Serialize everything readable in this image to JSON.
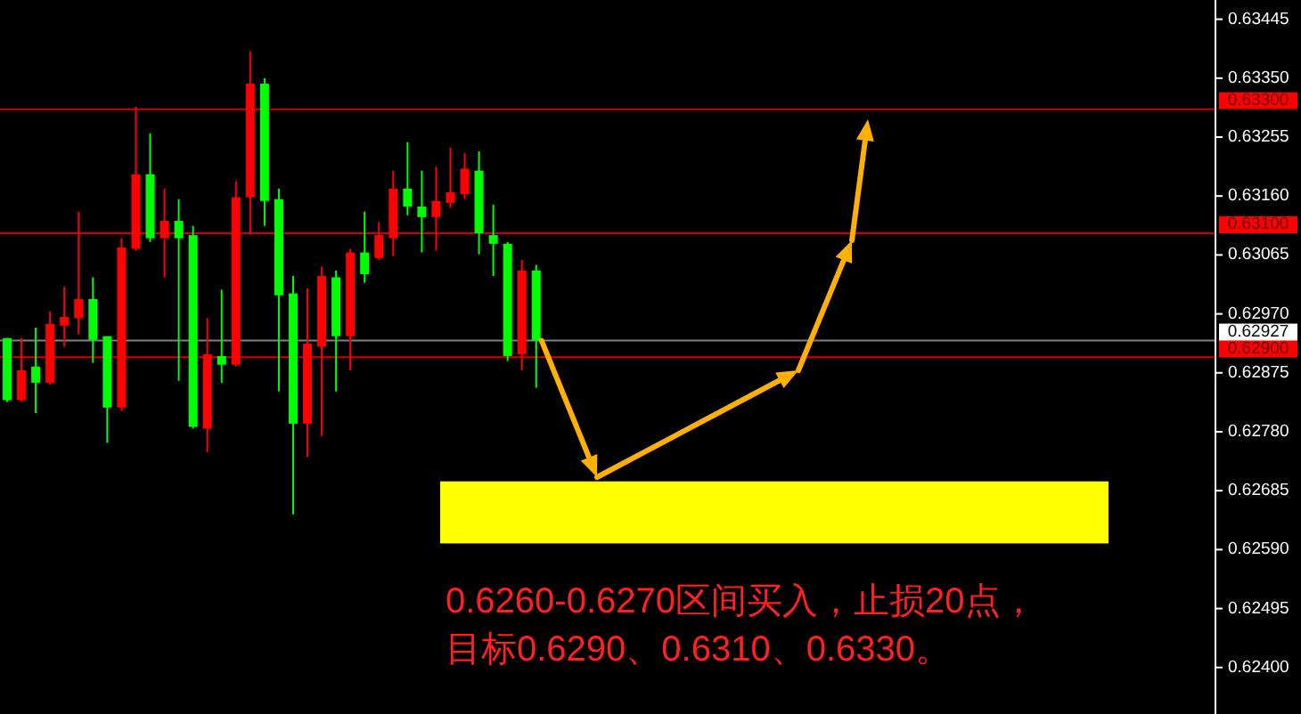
{
  "chart_data": {
    "type": "candlestick",
    "categories": [
      null,
      null,
      null,
      null,
      null,
      null,
      null,
      null,
      null,
      null,
      null,
      null,
      null,
      null,
      null,
      null,
      null,
      null,
      null,
      null,
      null,
      null,
      null,
      null,
      null,
      null,
      null,
      null,
      null,
      null,
      null,
      null,
      null,
      null,
      null,
      null,
      null,
      null,
      null,
      null,
      null,
      null,
      null,
      null,
      null,
      null,
      null,
      null,
      null,
      null,
      null,
      null,
      null,
      null,
      null,
      null,
      null,
      null,
      null,
      null,
      null,
      null,
      null,
      null,
      null,
      null,
      null,
      null,
      null,
      null,
      null,
      null,
      null,
      null,
      null,
      null,
      null,
      null,
      null,
      null,
      null,
      null,
      null,
      null,
      null
    ],
    "ohlc": [
      [
        0.62931,
        0.62931,
        0.62828,
        0.62831
      ],
      [
        0.62831,
        0.62931,
        0.62828,
        0.62879
      ],
      [
        0.62885,
        0.62948,
        0.6281,
        0.62859
      ],
      [
        0.62859,
        0.62974,
        0.62856,
        0.62954
      ],
      [
        0.62951,
        0.63014,
        0.62917,
        0.62965
      ],
      [
        0.62963,
        0.63135,
        0.62937,
        0.62994
      ],
      [
        0.62994,
        0.63029,
        0.62891,
        0.62928
      ],
      [
        0.62934,
        0.62934,
        0.62762,
        0.62819
      ],
      [
        0.62819,
        0.63092,
        0.62813,
        0.63077
      ],
      [
        0.63075,
        0.63304,
        0.63072,
        0.63195
      ],
      [
        0.63195,
        0.63261,
        0.63086,
        0.63092
      ],
      [
        0.63092,
        0.63172,
        0.63029,
        0.6312
      ],
      [
        0.6312,
        0.63155,
        0.62862,
        0.63092
      ],
      [
        0.63097,
        0.63112,
        0.62785,
        0.62788
      ],
      [
        0.62785,
        0.62963,
        0.62747,
        0.62905
      ],
      [
        0.62902,
        0.63009,
        0.62859,
        0.62888
      ],
      [
        0.62888,
        0.63184,
        0.62885,
        0.63158
      ],
      [
        0.63158,
        0.63393,
        0.631,
        0.63341
      ],
      [
        0.63341,
        0.6335,
        0.63112,
        0.63152
      ],
      [
        0.63155,
        0.63172,
        0.62845,
        0.63
      ],
      [
        0.63003,
        0.63031,
        0.62647,
        0.62793
      ],
      [
        0.62793,
        0.63011,
        0.62739,
        0.62922
      ],
      [
        0.62917,
        0.63046,
        0.62773,
        0.63031
      ],
      [
        0.63029,
        0.6304,
        0.62845,
        0.62934
      ],
      [
        0.62934,
        0.63075,
        0.62879,
        0.63069
      ],
      [
        0.63069,
        0.63135,
        0.6302,
        0.63034
      ],
      [
        0.6306,
        0.63118,
        0.63057,
        0.63097
      ],
      [
        0.63092,
        0.63201,
        0.63063,
        0.63172
      ],
      [
        0.63172,
        0.63247,
        0.63129,
        0.63143
      ],
      [
        0.63143,
        0.63201,
        0.63069,
        0.63126
      ],
      [
        0.63126,
        0.63207,
        0.63072,
        0.63152
      ],
      [
        0.63149,
        0.63238,
        0.63141,
        0.63166
      ],
      [
        0.63163,
        0.63229,
        0.63155,
        0.63204
      ],
      [
        0.63201,
        0.63232,
        0.63066,
        0.631
      ],
      [
        0.63097,
        0.63146,
        0.63031,
        0.63083
      ],
      [
        0.63083,
        0.63086,
        0.62894,
        0.62902
      ],
      [
        0.62905,
        0.63057,
        0.62879,
        0.6304
      ],
      [
        0.6304,
        0.63049,
        0.62851,
        0.62927
      ],
      null,
      null,
      null,
      null,
      null,
      null,
      null,
      null,
      null,
      null,
      null,
      null,
      null,
      null,
      null,
      null,
      null,
      null,
      null,
      null,
      null,
      null,
      null,
      null,
      null,
      null,
      null,
      null,
      null,
      null,
      null,
      null,
      null,
      null,
      null,
      null,
      null,
      null,
      null,
      null,
      null,
      null,
      null,
      null,
      null,
      null,
      null
    ],
    "colors": [
      "#00ff00",
      "#ff0000",
      "#00ff00",
      "#ff0000",
      "#ff0000",
      "#ff0000",
      "#00ff00",
      "#00ff00",
      "#ff0000",
      "#ff0000",
      "#00ff00",
      "#ff0000",
      "#00ff00",
      "#00ff00",
      "#ff0000",
      "#00ff00",
      "#ff0000",
      "#ff0000",
      "#00ff00",
      "#00ff00",
      "#00ff00",
      "#ff0000",
      "#ff0000",
      "#00ff00",
      "#ff0000",
      "#00ff00",
      "#ff0000",
      "#ff0000",
      "#00ff00",
      "#00ff00",
      "#ff0000",
      "#ff0000",
      "#ff0000",
      "#00ff00",
      "#00ff00",
      "#00ff00",
      "#ff0000",
      "#00ff00",
      null,
      null,
      null,
      null,
      null,
      null,
      null,
      null,
      null,
      null,
      null,
      null,
      null,
      null,
      null,
      null,
      null,
      null,
      null,
      null,
      null,
      null,
      null,
      null,
      null,
      null,
      null,
      null,
      null,
      null,
      null,
      null,
      null,
      null,
      null,
      null,
      null,
      null,
      null,
      null,
      null,
      null,
      null,
      null,
      null,
      null,
      null
    ],
    "ylim": [
      0.62325,
      0.63476
    ],
    "yticks": [
      {
        "value": 0.63445,
        "label": "0.63445"
      },
      {
        "value": 0.6335,
        "label": "0.63350"
      },
      {
        "value": 0.63255,
        "label": "0.63255"
      },
      {
        "value": 0.6316,
        "label": "0.63160"
      },
      {
        "value": 0.63065,
        "label": "0.63065"
      },
      {
        "value": 0.6297,
        "label": "0.62970"
      },
      {
        "value": 0.62875,
        "label": "0.62875"
      },
      {
        "value": 0.6278,
        "label": "0.62780"
      },
      {
        "value": 0.62685,
        "label": "0.62685"
      },
      {
        "value": 0.6259,
        "label": "0.62590"
      },
      {
        "value": 0.62495,
        "label": "0.62495"
      },
      {
        "value": 0.624,
        "label": "0.62400"
      }
    ],
    "tick_labels": "y",
    "ref_lines": [
      {
        "axis": "y",
        "value": 0.633,
        "label": "0.63300",
        "color": "#d00000"
      },
      {
        "axis": "y",
        "value": 0.631,
        "label": "0.63100",
        "color": "#d00000"
      },
      {
        "axis": "y",
        "value": 0.629,
        "label": "0.62900",
        "color": "#d00000"
      },
      {
        "axis": "y",
        "value": 0.62927,
        "label": "0.62927",
        "color": "#808080"
      }
    ],
    "bands": [
      {
        "axis": "y",
        "from": 0.626,
        "to": 0.627,
        "color": "#ffff00"
      }
    ],
    "annotations": [
      "0.6260-0.6270区间买入，止损20点，",
      "目标0.6290、0.6310、0.6330。"
    ]
  }
}
